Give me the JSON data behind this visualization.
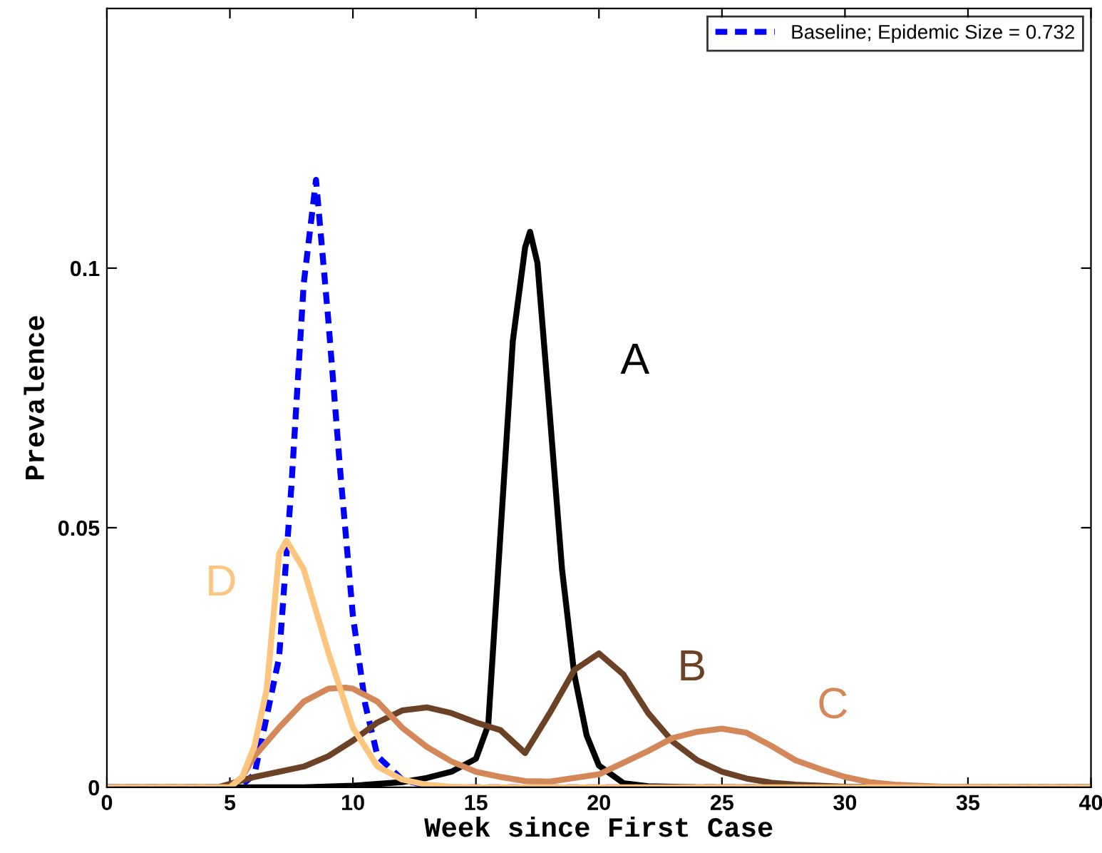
{
  "chart_data": {
    "type": "line",
    "xlabel": "Week since First Case",
    "ylabel": "Prevalence",
    "xlim": [
      0,
      40
    ],
    "ylim": [
      0,
      0.15
    ],
    "xticks": [
      0,
      5,
      10,
      15,
      20,
      25,
      30,
      35,
      40
    ],
    "yticks": [
      0,
      0.05,
      0.1
    ],
    "grid": false,
    "legend": "top right",
    "series": [
      {
        "name": "Baseline; Epidemic Size = 0.732",
        "color": "#0000ff",
        "line_style": "dashed",
        "x": [
          0,
          5,
          5.5,
          6,
          7,
          7.5,
          8,
          8.5,
          9,
          9.5,
          10,
          10.5,
          11,
          12,
          13,
          14,
          40
        ],
        "values": [
          0,
          0,
          0.0005,
          0.0025,
          0.025,
          0.058,
          0.097,
          0.117,
          0.09,
          0.06,
          0.033,
          0.016,
          0.006,
          0.0015,
          0.0003,
          0,
          0
        ]
      },
      {
        "name": "A",
        "color": "#000000",
        "line_style": "solid",
        "x": [
          0,
          8,
          10,
          12,
          13,
          14,
          15,
          15.5,
          16,
          16.5,
          17,
          17.2,
          17.5,
          18,
          18.5,
          19,
          19.5,
          20,
          21,
          22,
          24,
          40
        ],
        "values": [
          0,
          0,
          0.0003,
          0.001,
          0.0018,
          0.003,
          0.0055,
          0.012,
          0.049,
          0.086,
          0.104,
          0.107,
          0.101,
          0.072,
          0.042,
          0.0217,
          0.01,
          0.0042,
          0.0008,
          0.0002,
          0,
          0
        ]
      },
      {
        "name": "B",
        "color": "#6b4226",
        "line_style": "solid",
        "x": [
          0,
          4.5,
          6,
          8,
          9,
          10,
          11,
          12,
          13,
          14,
          15,
          16,
          17,
          18,
          19,
          20,
          21,
          22,
          23,
          24,
          25,
          26,
          27,
          28,
          30,
          32,
          40
        ],
        "values": [
          0,
          0,
          0.002,
          0.004,
          0.006,
          0.009,
          0.0125,
          0.0148,
          0.0154,
          0.0143,
          0.0125,
          0.011,
          0.0066,
          0.0143,
          0.0226,
          0.0258,
          0.0217,
          0.0143,
          0.0088,
          0.0052,
          0.003,
          0.0017,
          0.0009,
          0.0005,
          0.0001,
          0,
          0
        ]
      },
      {
        "name": "C",
        "color": "#d4885a",
        "line_style": "solid",
        "x": [
          0,
          5,
          5.5,
          6,
          7,
          8,
          9,
          9.7,
          10,
          11,
          12,
          13,
          14,
          15,
          16,
          17,
          18,
          20,
          22,
          23,
          24,
          25,
          26,
          27,
          28,
          29,
          30,
          31,
          32,
          34,
          36,
          40
        ],
        "values": [
          0,
          0,
          0.002,
          0.006,
          0.0115,
          0.0165,
          0.019,
          0.0192,
          0.019,
          0.0165,
          0.0115,
          0.0078,
          0.005,
          0.003,
          0.002,
          0.0012,
          0.0011,
          0.0025,
          0.007,
          0.0095,
          0.0107,
          0.0113,
          0.0105,
          0.008,
          0.0052,
          0.0035,
          0.002,
          0.001,
          0.0005,
          0.0001,
          0,
          0
        ]
      },
      {
        "name": "D",
        "color": "#fec57f",
        "line_style": "solid",
        "x": [
          0,
          5,
          5.5,
          6,
          6.5,
          7,
          7.3,
          8,
          9,
          10,
          11,
          12,
          13,
          14,
          15,
          40
        ],
        "values": [
          0,
          0,
          0.002,
          0.008,
          0.019,
          0.045,
          0.0475,
          0.042,
          0.026,
          0.0115,
          0.004,
          0.0015,
          0.0005,
          0.0001,
          0,
          0
        ]
      }
    ]
  }
}
